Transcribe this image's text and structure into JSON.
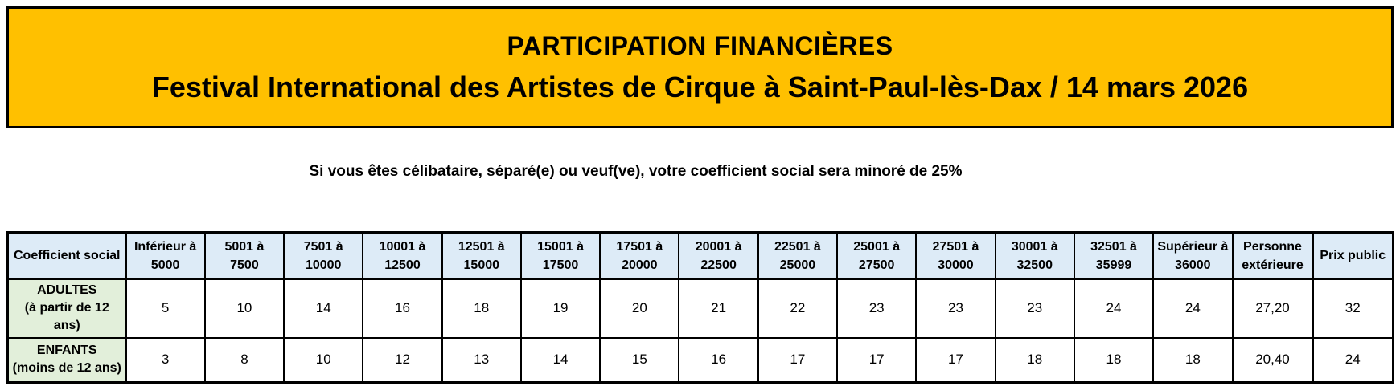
{
  "banner": {
    "title_line1": "PARTICIPATION FINANCIÈRES",
    "title_line2": "Festival International des Artistes de Cirque à Saint-Paul-lès-Dax / 14 mars 2026",
    "background_color": "#FFC000"
  },
  "note": "Si vous êtes célibataire, séparé(e) ou veuf(ve), votre coefficient social sera minoré de 25%",
  "table": {
    "corner_header": "Coefficient social",
    "column_headers": [
      "Inférieur à\n5000",
      "5001 à\n7500",
      "7501 à\n10000",
      "10001 à\n12500",
      "12501 à\n15000",
      "15001 à\n17500",
      "17501 à\n20000",
      "20001 à\n22500",
      "22501 à\n25000",
      "25001 à\n27500",
      "27501 à\n30000",
      "30001 à\n32500",
      "32501 à\n35999",
      "Supérieur à\n36000",
      "Personne\nextérieure",
      "Prix public"
    ],
    "rows": [
      {
        "label": "ADULTES\n(à partir de 12 ans)",
        "values": [
          "5",
          "10",
          "14",
          "16",
          "18",
          "19",
          "20",
          "21",
          "22",
          "23",
          "23",
          "23",
          "24",
          "24",
          "27,20",
          "32"
        ]
      },
      {
        "label": "ENFANTS\n(moins de 12 ans)",
        "values": [
          "3",
          "8",
          "10",
          "12",
          "13",
          "14",
          "15",
          "16",
          "17",
          "17",
          "17",
          "18",
          "18",
          "18",
          "20,40",
          "24"
        ]
      }
    ],
    "colors": {
      "header_bg": "#DDEBF7",
      "row_label_bg": "#E2EFDA",
      "border": "#000000"
    }
  }
}
